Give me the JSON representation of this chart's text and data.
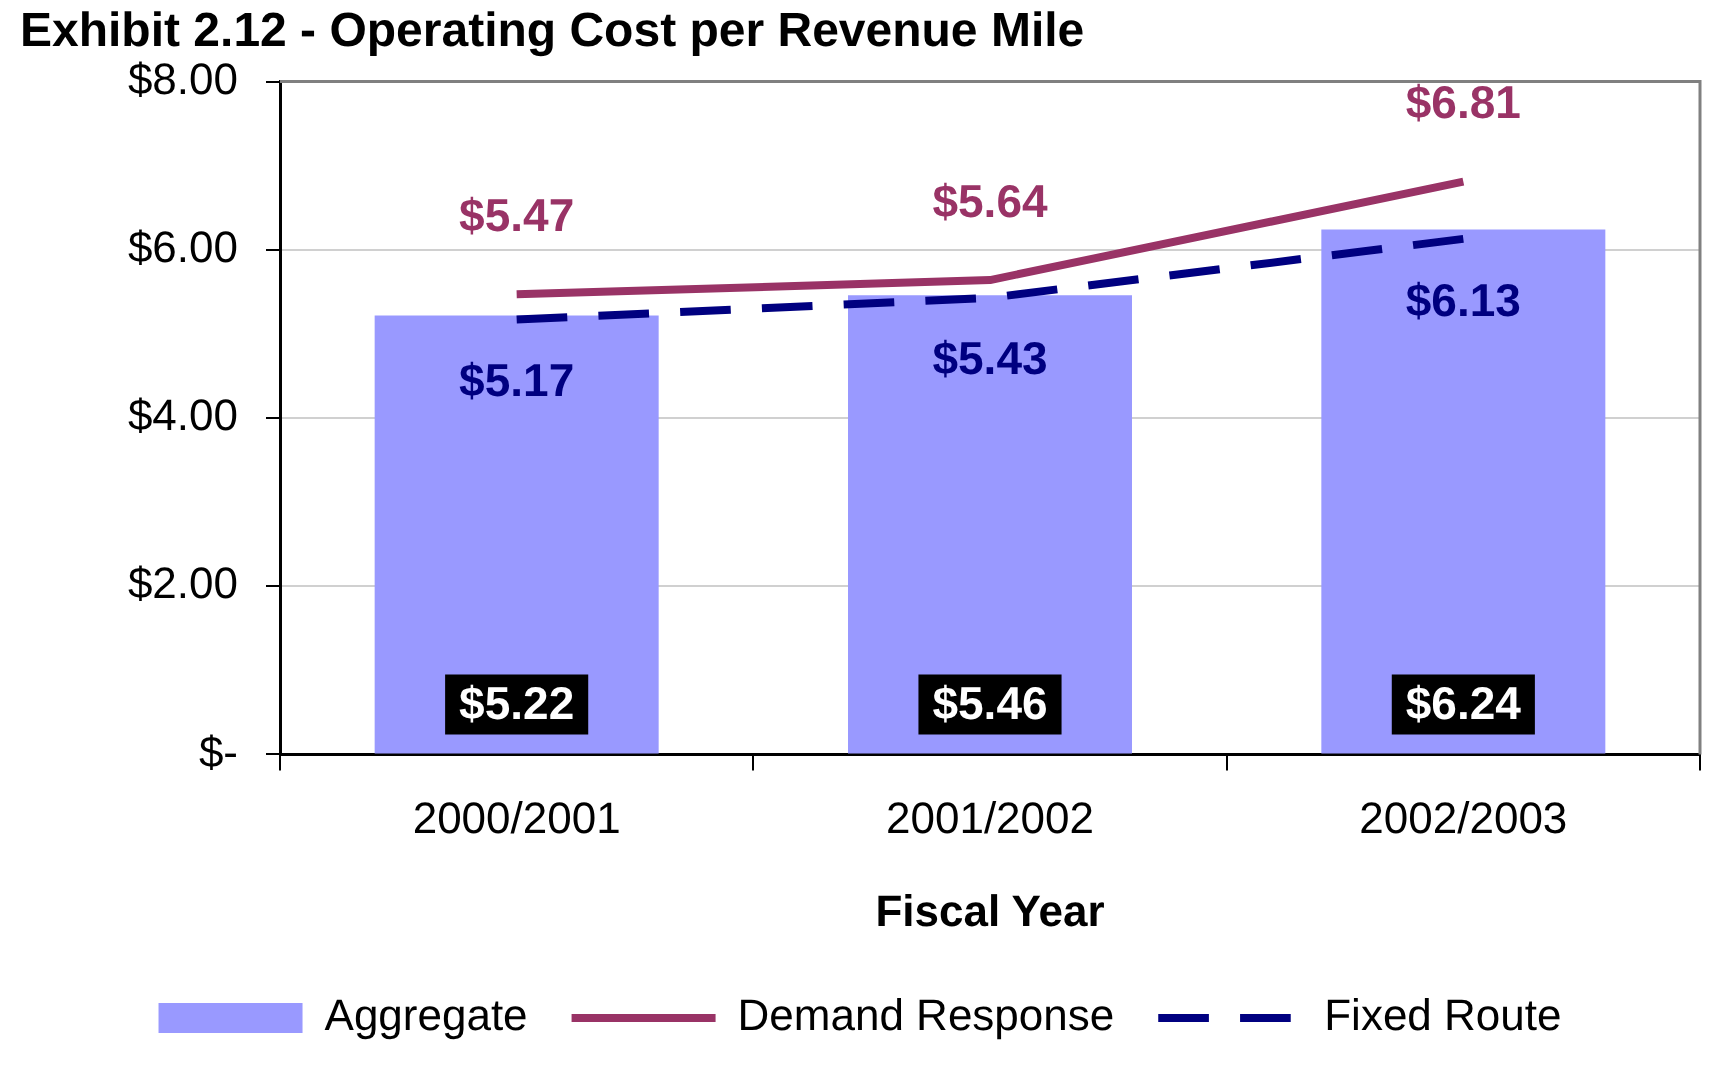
{
  "chart_data": {
    "type": "bar",
    "title": "Exhibit 2.12 - Operating Cost per Revenue Mile",
    "xlabel": "Fiscal Year",
    "categories": [
      "2000/2001",
      "2001/2002",
      "2002/2003"
    ],
    "series": [
      {
        "name": "Aggregate",
        "type": "bar",
        "color": "#9999ff",
        "values": [
          5.22,
          5.46,
          6.24
        ],
        "value_labels": [
          "$5.22",
          "$5.46",
          "$6.24"
        ]
      },
      {
        "name": "Demand Response",
        "type": "line",
        "color": "#993366",
        "values": [
          5.47,
          5.64,
          6.81
        ],
        "value_labels": [
          "$5.47",
          "$5.64",
          "$6.81"
        ],
        "line_style": "solid"
      },
      {
        "name": "Fixed Route",
        "type": "line",
        "color": "#000080",
        "values": [
          5.17,
          5.43,
          6.13
        ],
        "value_labels": [
          "$5.17",
          "$5.43",
          "$6.13"
        ],
        "line_style": "dashed"
      }
    ],
    "ylim": [
      0,
      8
    ],
    "yticks": [
      {
        "value": 0,
        "label": "$-"
      },
      {
        "value": 2,
        "label": "$2.00"
      },
      {
        "value": 4,
        "label": "$4.00"
      },
      {
        "value": 6,
        "label": "$6.00"
      },
      {
        "value": 8,
        "label": "$8.00"
      }
    ],
    "grid": "y",
    "legend": "bottom",
    "marker": "none"
  }
}
